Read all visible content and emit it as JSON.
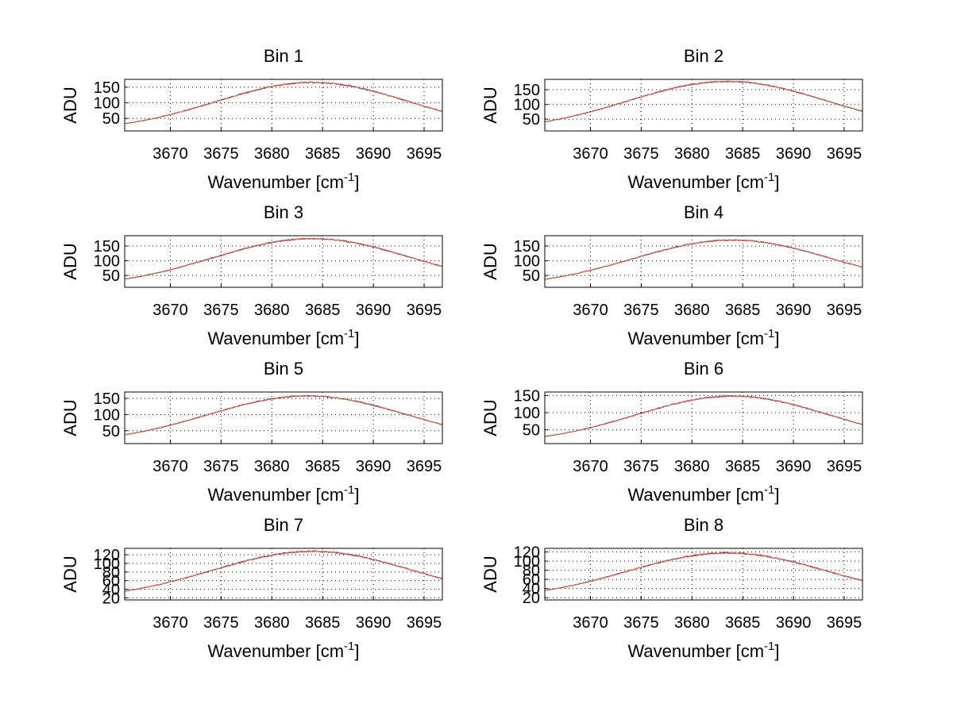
{
  "chart_data": [
    {
      "type": "line",
      "title": "Bin 1",
      "xlabel": "Wavenumber [cm",
      "xlabel_sup": "-1",
      "xlabel_suffix": "]",
      "ylabel": "ADU",
      "xlim": [
        3665.5,
        3696.8
      ],
      "ylim": [
        10,
        175
      ],
      "xticks": [
        3670,
        3675,
        3680,
        3685,
        3690,
        3695
      ],
      "yticks": [
        50,
        100,
        150
      ],
      "curve": {
        "center": 3684,
        "peak": 165,
        "base": 10,
        "sigma": 9.5
      },
      "series": [
        {
          "name": "series-blue",
          "color": "#3333cc",
          "noise": 2.2
        },
        {
          "name": "series-orange",
          "color": "#e65c1a",
          "noise": 2.0
        }
      ]
    },
    {
      "type": "line",
      "title": "Bin 2",
      "xlabel": "Wavenumber [cm",
      "xlabel_sup": "-1",
      "xlabel_suffix": "]",
      "ylabel": "ADU",
      "xlim": [
        3665.5,
        3696.8
      ],
      "ylim": [
        10,
        185
      ],
      "xticks": [
        3670,
        3675,
        3680,
        3685,
        3690,
        3695
      ],
      "yticks": [
        50,
        100,
        150
      ],
      "curve": {
        "center": 3683.5,
        "peak": 178,
        "base": 10,
        "sigma": 9.8
      },
      "series": [
        {
          "name": "series-blue",
          "color": "#3333cc",
          "noise": 2.2
        },
        {
          "name": "series-orange",
          "color": "#e65c1a",
          "noise": 2.0
        }
      ]
    },
    {
      "type": "line",
      "title": "Bin 3",
      "xlabel": "Wavenumber [cm",
      "xlabel_sup": "-1",
      "xlabel_suffix": "]",
      "ylabel": "ADU",
      "xlim": [
        3665.5,
        3696.8
      ],
      "ylim": [
        10,
        185
      ],
      "xticks": [
        3670,
        3675,
        3680,
        3685,
        3690,
        3695
      ],
      "yticks": [
        50,
        100,
        150
      ],
      "curve": {
        "center": 3684,
        "peak": 175,
        "base": 10,
        "sigma": 9.8
      },
      "series": [
        {
          "name": "series-blue",
          "color": "#3333cc",
          "noise": 2.4
        },
        {
          "name": "series-orange",
          "color": "#e65c1a",
          "noise": 2.2
        }
      ]
    },
    {
      "type": "line",
      "title": "Bin 4",
      "xlabel": "Wavenumber [cm",
      "xlabel_sup": "-1",
      "xlabel_suffix": "]",
      "ylabel": "ADU",
      "xlim": [
        3665.5,
        3696.8
      ],
      "ylim": [
        10,
        185
      ],
      "xticks": [
        3670,
        3675,
        3680,
        3685,
        3690,
        3695
      ],
      "yticks": [
        50,
        100,
        150
      ],
      "curve": {
        "center": 3684,
        "peak": 170,
        "base": 10,
        "sigma": 9.8
      },
      "series": [
        {
          "name": "series-blue",
          "color": "#3333cc",
          "noise": 2.0
        },
        {
          "name": "series-orange",
          "color": "#e65c1a",
          "noise": 1.8
        }
      ]
    },
    {
      "type": "line",
      "title": "Bin 5",
      "xlabel": "Wavenumber [cm",
      "xlabel_sup": "-1",
      "xlabel_suffix": "]",
      "ylabel": "ADU",
      "xlim": [
        3665.5,
        3696.8
      ],
      "ylim": [
        10,
        170
      ],
      "xticks": [
        3670,
        3675,
        3680,
        3685,
        3690,
        3695
      ],
      "yticks": [
        50,
        100,
        150
      ],
      "curve": {
        "center": 3683.5,
        "peak": 158,
        "base": 10,
        "sigma": 9.8
      },
      "series": [
        {
          "name": "series-blue",
          "color": "#3333cc",
          "noise": 2.0
        },
        {
          "name": "series-orange",
          "color": "#e65c1a",
          "noise": 1.8
        }
      ]
    },
    {
      "type": "line",
      "title": "Bin 6",
      "xlabel": "Wavenumber [cm",
      "xlabel_sup": "-1",
      "xlabel_suffix": "]",
      "ylabel": "ADU",
      "xlim": [
        3665.5,
        3696.8
      ],
      "ylim": [
        10,
        160
      ],
      "xticks": [
        3670,
        3675,
        3680,
        3685,
        3690,
        3695
      ],
      "yticks": [
        50,
        100,
        150
      ],
      "curve": {
        "center": 3684,
        "peak": 148,
        "base": 10,
        "sigma": 9.5
      },
      "series": [
        {
          "name": "series-blue",
          "color": "#3333cc",
          "noise": 2.0
        },
        {
          "name": "series-orange",
          "color": "#e65c1a",
          "noise": 1.8
        }
      ]
    },
    {
      "type": "line",
      "title": "Bin 7",
      "xlabel": "Wavenumber [cm",
      "xlabel_sup": "-1",
      "xlabel_suffix": "]",
      "ylabel": "ADU",
      "xlim": [
        3665.5,
        3696.8
      ],
      "ylim": [
        15,
        135
      ],
      "xticks": [
        3670,
        3675,
        3680,
        3685,
        3690,
        3695
      ],
      "yticks": [
        20,
        40,
        60,
        80,
        100,
        120
      ],
      "yticklabels": [
        "20",
        "40",
        "60",
        "80",
        "100",
        "120"
      ],
      "curve": {
        "center": 3684,
        "peak": 128,
        "base": 17,
        "sigma": 9.8
      },
      "series": [
        {
          "name": "series-blue",
          "color": "#3333cc",
          "noise": 1.6
        },
        {
          "name": "series-orange",
          "color": "#e65c1a",
          "noise": 1.5
        }
      ]
    },
    {
      "type": "line",
      "title": "Bin 8",
      "xlabel": "Wavenumber [cm",
      "xlabel_sup": "-1",
      "xlabel_suffix": "]",
      "ylabel": "ADU",
      "xlim": [
        3665.5,
        3696.8
      ],
      "ylim": [
        15,
        128
      ],
      "xticks": [
        3670,
        3675,
        3680,
        3685,
        3690,
        3695
      ],
      "yticks": [
        20,
        40,
        60,
        80,
        100,
        120
      ],
      "yticklabels": [
        "20",
        "40",
        "60",
        "80",
        "100",
        "120"
      ],
      "curve": {
        "center": 3683.5,
        "peak": 118,
        "base": 17,
        "sigma": 9.8
      },
      "series": [
        {
          "name": "series-blue",
          "color": "#3333cc",
          "noise": 1.6
        },
        {
          "name": "series-orange",
          "color": "#e65c1a",
          "noise": 1.5
        }
      ]
    }
  ]
}
